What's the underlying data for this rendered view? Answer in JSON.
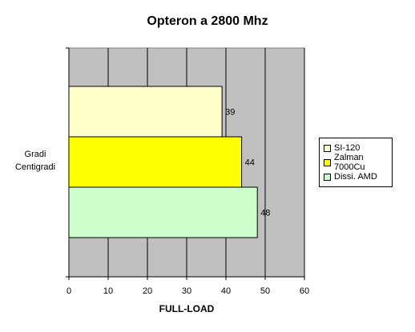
{
  "chart_data": {
    "type": "bar",
    "orientation": "horizontal",
    "title": "Opteron a 2800 Mhz",
    "xlabel": "FULL-LOAD",
    "ylabel": [
      "Gradi",
      "Centigradi"
    ],
    "categories": [
      "Gradi Centigradi"
    ],
    "series": [
      {
        "name": "SI-120",
        "values": [
          39
        ],
        "color": "#ffffcc"
      },
      {
        "name": "Zalman 7000Cu",
        "values": [
          44
        ],
        "color": "#ffff00"
      },
      {
        "name": "Dissi. AMD",
        "values": [
          48
        ],
        "color": "#ccffcc"
      }
    ],
    "xlim": [
      0,
      60
    ],
    "xticks": [
      0,
      10,
      20,
      30,
      40,
      50,
      60
    ],
    "grid": true,
    "plot_background": "#c0c0c0",
    "legend_position": "right"
  }
}
